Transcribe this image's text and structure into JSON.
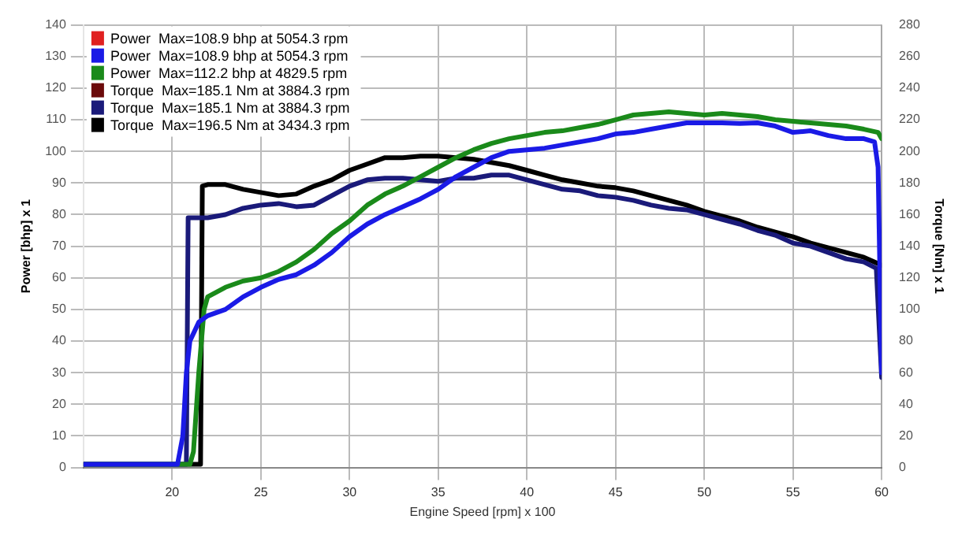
{
  "chart_data": {
    "type": "line",
    "xlabel": "Engine Speed [rpm] x 100",
    "ylabel": "Power [bhp] x 1",
    "y2label": "Torque [Nm] x 1",
    "xlim": [
      15,
      60
    ],
    "xticks": [
      20,
      25,
      30,
      35,
      40,
      45,
      50,
      55,
      60
    ],
    "ylim": [
      0,
      140
    ],
    "yticks": [
      0,
      10,
      20,
      30,
      40,
      50,
      60,
      70,
      80,
      90,
      100,
      110,
      120,
      130,
      140
    ],
    "y2lim": [
      0,
      280
    ],
    "y2ticks": [
      0,
      20,
      40,
      60,
      80,
      100,
      120,
      140,
      160,
      180,
      200,
      220,
      240,
      260,
      280
    ],
    "grid": true,
    "legend": "top left",
    "marker": "none",
    "line_style": "solid",
    "series": [
      {
        "name": "Power  Max=108.9 bhp at 5054.3 rpm",
        "color": "#e02020"
      },
      {
        "name": "Power  Max=108.9 bhp at 5054.3 rpm",
        "color": "#1a1ae6",
        "x": [
          15,
          18,
          20.3,
          20.6,
          20.8,
          21,
          21.5,
          22,
          23,
          24,
          25,
          26,
          27,
          28,
          29,
          30,
          31,
          32,
          33,
          34,
          35,
          36,
          37,
          38,
          39,
          40,
          41,
          42,
          43,
          44,
          45,
          46,
          47,
          48,
          49,
          50,
          51,
          52,
          53,
          54,
          55,
          56,
          57,
          58,
          59,
          59.6,
          59.8,
          60
        ],
        "values": [
          1,
          1,
          1,
          10,
          30,
          40,
          46,
          48,
          50,
          54,
          57,
          59.5,
          61,
          64,
          68,
          73,
          77,
          80,
          82.5,
          85,
          88,
          92,
          95,
          98,
          100,
          100.5,
          101,
          102,
          103,
          104,
          105.5,
          106,
          107,
          108,
          109,
          109,
          109,
          108.8,
          109,
          108,
          106,
          106.5,
          105,
          104,
          104,
          103,
          95,
          30
        ]
      },
      {
        "name": "Power  Max=112.2 bhp at 4829.5 rpm",
        "color": "#1a8a1a",
        "x": [
          15,
          21,
          21.2,
          21.5,
          21.8,
          22,
          23,
          24,
          25,
          26,
          27,
          28,
          29,
          30,
          31,
          32,
          33,
          34,
          35,
          36,
          37,
          38,
          39,
          40,
          41,
          42,
          43,
          44,
          45,
          46,
          47,
          48,
          49,
          50,
          51,
          52,
          53,
          54,
          55,
          56,
          57,
          58,
          59,
          59.8,
          60
        ],
        "values": [
          1,
          1,
          5,
          30,
          50,
          54,
          57,
          59,
          60,
          62,
          65,
          69,
          74,
          78,
          83,
          86.5,
          89,
          92,
          95,
          98,
          100.5,
          102.5,
          104,
          105,
          106,
          106.5,
          107.5,
          108.5,
          110,
          111.5,
          112,
          112.5,
          112,
          111.5,
          112,
          111.5,
          111,
          110,
          109.5,
          109,
          108.5,
          108,
          107,
          106,
          104
        ],
        "axis": "y"
      },
      {
        "name": "Torque  Max=185.1 Nm at 3884.3 rpm",
        "color": "#6b0a0a",
        "axis": "y2"
      },
      {
        "name": "Torque  Max=185.1 Nm at 3884.3 rpm",
        "color": "#1a1a7a",
        "x": [
          15,
          20.8,
          20.9,
          21,
          22,
          23,
          24,
          25,
          26,
          27,
          28,
          29,
          30,
          31,
          32,
          33,
          34,
          35,
          36,
          37,
          38,
          39,
          40,
          41,
          42,
          43,
          44,
          45,
          46,
          47,
          48,
          49,
          50,
          51,
          52,
          53,
          54,
          55,
          56,
          57,
          58,
          59,
          59.7,
          60
        ],
        "values": [
          2,
          2,
          158,
          158,
          158,
          160,
          164,
          166,
          167,
          165,
          166,
          172,
          178,
          182,
          183,
          183,
          182,
          181,
          183,
          183,
          185,
          185,
          182,
          179,
          176,
          175,
          172,
          171,
          169,
          166,
          164,
          163,
          160,
          157,
          154,
          150,
          147,
          142,
          140,
          136,
          132,
          130,
          126,
          57
        ],
        "axis": "y2"
      },
      {
        "name": "Torque  Max=196.5 Nm at 3434.3 rpm",
        "color": "#000000",
        "x": [
          15,
          21.6,
          21.7,
          22,
          23,
          24,
          25,
          26,
          27,
          28,
          29,
          30,
          31,
          32,
          33,
          34,
          35,
          36,
          37,
          38,
          39,
          40,
          41,
          42,
          43,
          44,
          45,
          46,
          47,
          48,
          49,
          50,
          51,
          52,
          53,
          54,
          55,
          56,
          57,
          58,
          59,
          60
        ],
        "values": [
          2,
          2,
          178,
          179,
          179,
          176,
          174,
          172,
          173,
          178,
          182,
          188,
          192,
          196,
          196,
          197,
          197,
          196,
          195,
          193,
          191,
          188,
          185,
          182,
          180,
          178,
          177,
          175,
          172,
          169,
          166,
          162,
          159,
          156,
          152,
          149,
          146,
          142,
          139,
          136,
          133,
          128
        ],
        "axis": "y2"
      }
    ]
  }
}
